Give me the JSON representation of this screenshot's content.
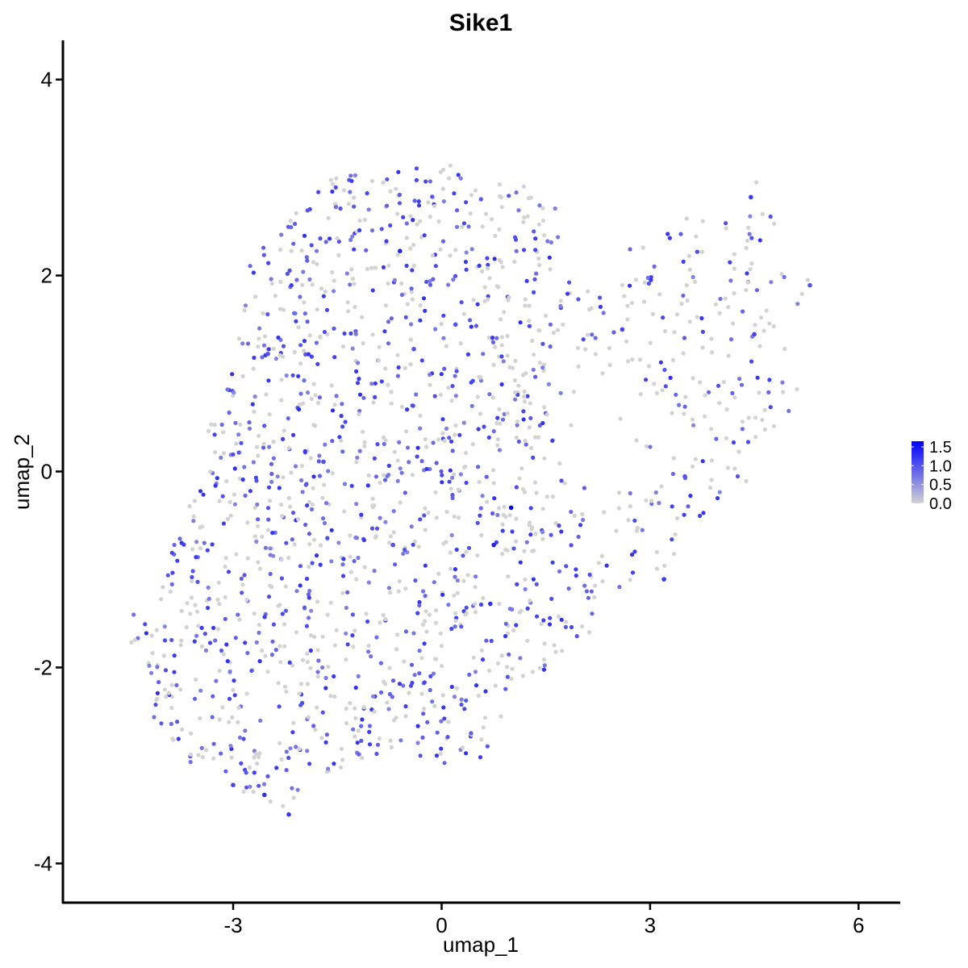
{
  "chart_data": {
    "type": "scatter",
    "title": "Sike1",
    "xlabel": "umap_1",
    "ylabel": "umap_2",
    "xlim": [
      -5.45,
      6.6
    ],
    "ylim": [
      -4.4,
      4.4
    ],
    "x_ticks": [
      -3,
      0,
      3,
      6
    ],
    "x_tick_labels": [
      "-3",
      "0",
      "3",
      "6"
    ],
    "y_ticks": [
      -4,
      -2,
      0,
      2,
      4
    ],
    "y_tick_labels": [
      "-4",
      "-2",
      "0",
      "2",
      "4"
    ],
    "grid": false,
    "legend_position": "right",
    "color_scale": {
      "low_color": "#d3d3d3",
      "high_color": "#0000ff",
      "min": 0,
      "max": 1.65,
      "tick_values": [
        0,
        0.5,
        1,
        1.5
      ],
      "tick_labels": [
        "0.0",
        "0.5",
        "1.0",
        "1.5"
      ]
    },
    "points": [
      {
        "x": 1.0,
        "y": -0.37,
        "expr": 1.65
      },
      {
        "x": -0.6,
        "y": 2.25,
        "expr": 1.4
      },
      {
        "x": 0.75,
        "y": -0.75,
        "expr": 1.4
      },
      {
        "x": -2.55,
        "y": -3.3,
        "expr": 1.3
      },
      {
        "x": 0.7,
        "y": -1.35,
        "expr": 1.3
      },
      {
        "x": -2.2,
        "y": -3.5,
        "expr": 1.2
      },
      {
        "x": 3.2,
        "y": -1.1,
        "expr": 1.2
      },
      {
        "x": 4.45,
        "y": 2.8,
        "expr": 1.2
      },
      {
        "x": 4.5,
        "y": 1.4,
        "expr": 1.1
      },
      {
        "x": -3.0,
        "y": -3.2,
        "expr": 1.1
      },
      {
        "x": 2.6,
        "y": 1.45,
        "expr": 1.1
      },
      {
        "x": -0.4,
        "y": 1.25,
        "expr": 1.0
      },
      {
        "x": 0.2,
        "y": 1.5,
        "expr": 1.0
      },
      {
        "x": -2.5,
        "y": 1.2,
        "expr": 1.0
      },
      {
        "x": 5.3,
        "y": 1.9,
        "expr": 1.0
      },
      {
        "x": -0.7,
        "y": -0.75,
        "expr": 1.0
      },
      {
        "x": 3.5,
        "y": -0.05,
        "expr": 1.0
      },
      {
        "x": -1.7,
        "y": 0.1,
        "expr": 1.0
      }
    ],
    "cloud": {
      "point_count": 1700,
      "description_only_for_script": false
    }
  }
}
